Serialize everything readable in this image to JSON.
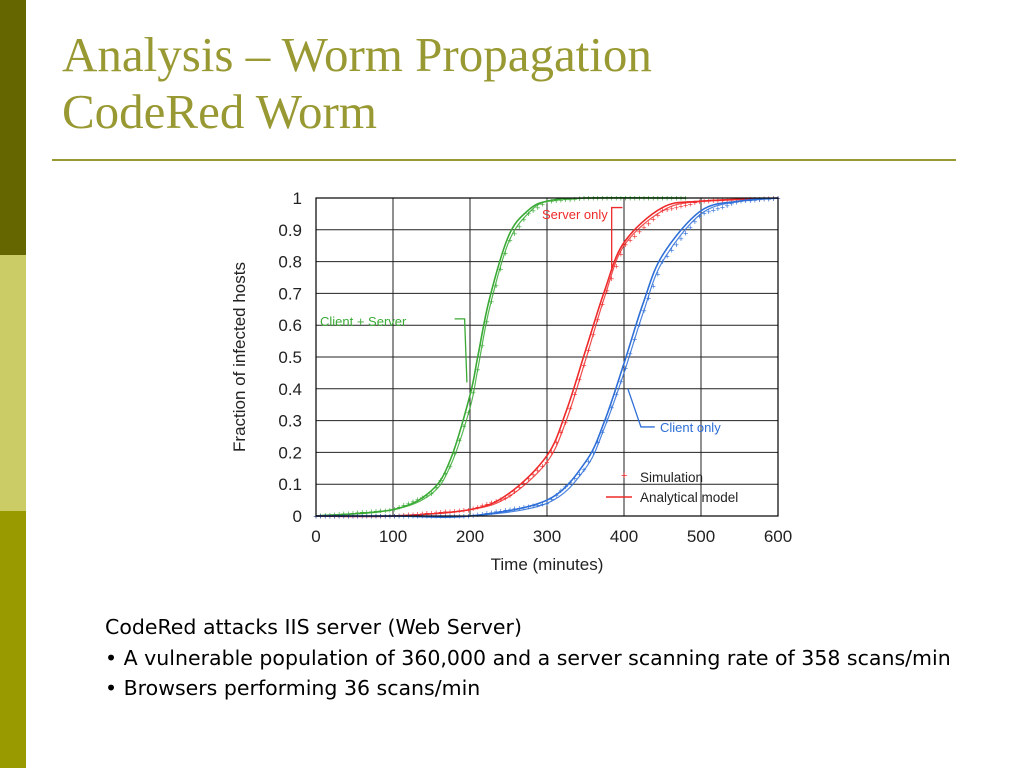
{
  "slide": {
    "title_line1": "Analysis – Worm Propagation",
    "title_line2": "CodeRed Worm"
  },
  "colors": {
    "sidebar_top": "#666600",
    "sidebar_mid": "#cccc66",
    "sidebar_bottom": "#999900",
    "title": "#999933",
    "series_green": "#3aaa35",
    "series_red": "#ee2a2a",
    "series_blue": "#2e6fd8"
  },
  "chart_data": {
    "type": "line",
    "title": "",
    "xlabel": "Time (minutes)",
    "ylabel": "Fraction of infected hosts",
    "xlim": [
      0,
      600
    ],
    "ylim": [
      0,
      1
    ],
    "xticks": [
      "0",
      "100",
      "200",
      "300",
      "400",
      "500",
      "600"
    ],
    "yticks": [
      "0",
      "0.1",
      "0.2",
      "0.3",
      "0.4",
      "0.5",
      "0.6",
      "0.7",
      "0.8",
      "0.9",
      "1"
    ],
    "grid": true,
    "legend_position": "bottom-right",
    "legend": {
      "simulation": "Simulation",
      "analytical": "Analytical model"
    },
    "annotations": {
      "server_only": "Server only",
      "client_server": "Client + Server",
      "client_only": "Client only"
    },
    "series": [
      {
        "name": "Client + Server",
        "color": "#3aaa35",
        "x": [
          0,
          100,
          150,
          175,
          200,
          210,
          225,
          250,
          275,
          300,
          350,
          480
        ],
        "analytical": [
          0.0,
          0.02,
          0.08,
          0.18,
          0.38,
          0.5,
          0.68,
          0.88,
          0.96,
          0.99,
          1.0,
          1.0
        ],
        "simulation": [
          0.0,
          0.02,
          0.07,
          0.16,
          0.34,
          0.46,
          0.65,
          0.86,
          0.95,
          0.99,
          1.0,
          1.0
        ]
      },
      {
        "name": "Server only",
        "color": "#ee2a2a",
        "x": [
          0,
          100,
          200,
          250,
          300,
          325,
          350,
          375,
          400,
          450,
          500,
          600
        ],
        "analytical": [
          0.0,
          0.0,
          0.02,
          0.07,
          0.19,
          0.33,
          0.52,
          0.71,
          0.86,
          0.97,
          0.99,
          1.0
        ],
        "simulation": [
          0.0,
          0.0,
          0.02,
          0.06,
          0.17,
          0.3,
          0.49,
          0.69,
          0.85,
          0.96,
          0.99,
          1.0
        ]
      },
      {
        "name": "Client only",
        "color": "#2e6fd8",
        "x": [
          0,
          100,
          200,
          300,
          350,
          375,
          400,
          425,
          450,
          500,
          550,
          600
        ],
        "analytical": [
          0.0,
          0.0,
          0.0,
          0.05,
          0.17,
          0.3,
          0.48,
          0.67,
          0.82,
          0.96,
          0.99,
          1.0
        ],
        "simulation": [
          0.0,
          0.0,
          0.0,
          0.04,
          0.15,
          0.28,
          0.45,
          0.64,
          0.8,
          0.95,
          0.99,
          1.0
        ]
      }
    ]
  },
  "body": {
    "line1": "CodeRed attacks IIS server (Web Server)",
    "line2": "• A vulnerable population of 360,000 and a server scanning rate of 358 scans/min",
    "line3": "• Browsers performing 36 scans/min"
  }
}
